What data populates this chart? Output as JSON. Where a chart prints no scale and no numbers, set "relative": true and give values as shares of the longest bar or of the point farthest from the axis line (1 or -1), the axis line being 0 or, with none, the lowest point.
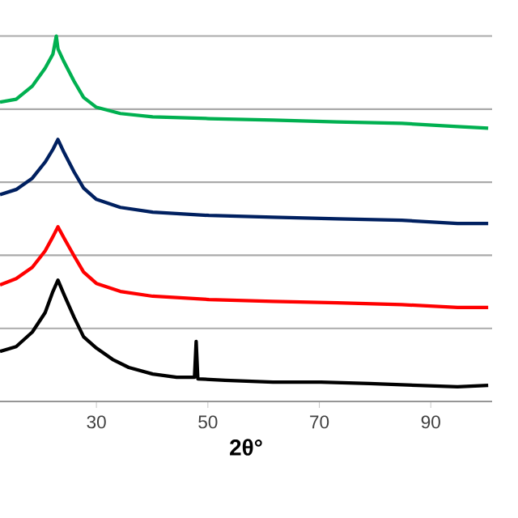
{
  "chart_data": {
    "type": "line",
    "xlabel": "2θ°",
    "relative": true,
    "xlim": [
      12.7,
      101
    ],
    "xticks": [
      30,
      50,
      70,
      90
    ],
    "grid": "y",
    "marker": "none",
    "line_style": "solid",
    "series": [
      {
        "color": "#000000",
        "x": [
          12.7,
          15.6,
          18.5,
          20.8,
          22.2,
          23.1,
          24.2,
          26.0,
          27.7,
          30,
          32.9,
          35.8,
          40.1,
          44.4,
          47.6,
          47.9,
          48.2,
          53.1,
          61.7,
          70.3,
          79.0,
          87.6,
          94.8,
          100.3
        ],
        "values": [
          0.137,
          0.15,
          0.19,
          0.243,
          0.301,
          0.332,
          0.292,
          0.23,
          0.177,
          0.146,
          0.115,
          0.093,
          0.075,
          0.066,
          0.066,
          0.164,
          0.062,
          0.058,
          0.053,
          0.053,
          0.049,
          0.044,
          0.04,
          0.044
        ]
      },
      {
        "color": "#ff0000",
        "x": [
          12.7,
          15.6,
          18.5,
          20.8,
          22.2,
          23.1,
          24.2,
          26.0,
          27.7,
          30,
          34.3,
          40.1,
          50.2,
          61.7,
          73.2,
          84.8,
          94.8,
          100.3
        ],
        "values": [
          0.319,
          0.336,
          0.367,
          0.412,
          0.451,
          0.478,
          0.447,
          0.398,
          0.354,
          0.323,
          0.301,
          0.288,
          0.279,
          0.274,
          0.27,
          0.265,
          0.257,
          0.257
        ]
      },
      {
        "color": "#002060",
        "x": [
          12.7,
          15.6,
          18.5,
          20.8,
          22.2,
          23.1,
          24.2,
          26.0,
          27.7,
          30,
          34.3,
          40.1,
          50.2,
          61.7,
          73.2,
          84.8,
          94.8,
          100.3
        ],
        "values": [
          0.566,
          0.58,
          0.611,
          0.655,
          0.69,
          0.717,
          0.681,
          0.628,
          0.584,
          0.553,
          0.531,
          0.518,
          0.509,
          0.504,
          0.5,
          0.496,
          0.487,
          0.487
        ]
      },
      {
        "color": "#00b050",
        "x": [
          12.7,
          15.6,
          18.5,
          20.8,
          22.2,
          22.8,
          23.1,
          24.2,
          26.0,
          27.7,
          30,
          34.3,
          40.1,
          50.2,
          61.7,
          73.2,
          84.8,
          94.8,
          100.3
        ],
        "values": [
          0.819,
          0.827,
          0.863,
          0.912,
          0.951,
          1.0,
          0.965,
          0.929,
          0.876,
          0.832,
          0.805,
          0.788,
          0.779,
          0.774,
          0.77,
          0.765,
          0.761,
          0.752,
          0.748
        ]
      }
    ]
  }
}
